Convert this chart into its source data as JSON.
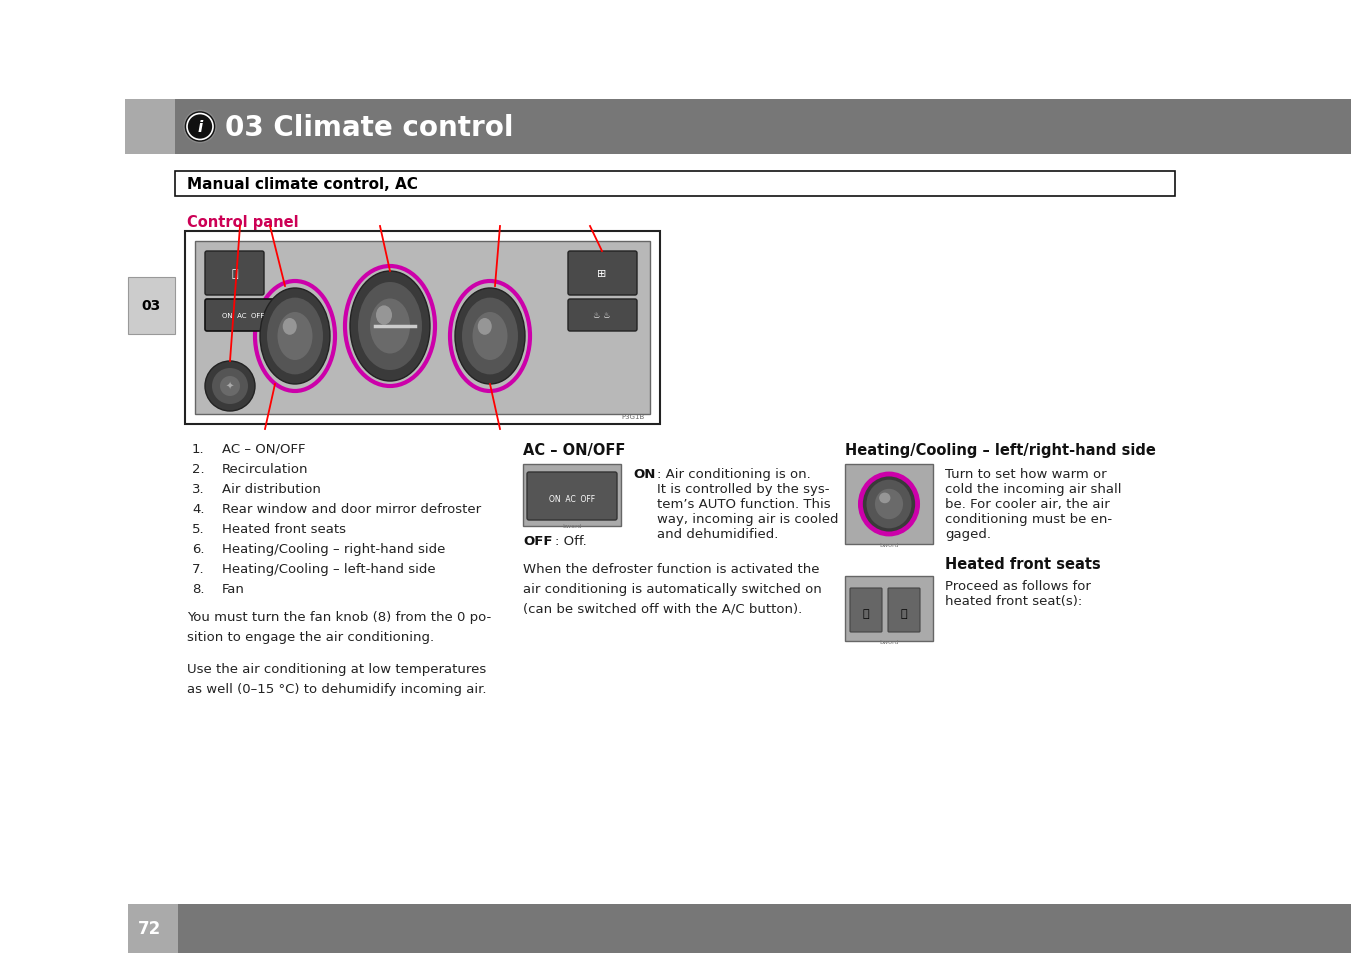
{
  "bg_color": "#ffffff",
  "header_bg": "#777777",
  "header_light_bg": "#aaaaaa",
  "header_text": "03 Climate control",
  "header_text_color": "#ffffff",
  "footer_bg": "#777777",
  "footer_light_bg": "#aaaaaa",
  "footer_text": "72",
  "footer_text_color": "#ffffff",
  "section_title": "Manual climate control, AC",
  "section_title_color": "#000000",
  "control_panel_label": "Control panel",
  "control_panel_color": "#cc0055",
  "list_items": [
    [
      "1.",
      "AC – ON/OFF"
    ],
    [
      "2.",
      "Recirculation"
    ],
    [
      "3.",
      "Air distribution"
    ],
    [
      "4.",
      "Rear window and door mirror defroster"
    ],
    [
      "5.",
      "Heated front seats"
    ],
    [
      "6.",
      "Heating/Cooling – right-hand side"
    ],
    [
      "7.",
      "Heating/Cooling – left-hand side"
    ],
    [
      "8.",
      "Fan"
    ]
  ],
  "para1_line1": "You must turn the fan knob (8) from the 0 po-",
  "para1_line2": "sition to engage the air conditioning.",
  "para2_line1": "Use the air conditioning at low temperatures",
  "para2_line2": "as well (0–15 °C) to dehumidify incoming air.",
  "col2_title": "AC – ON/OFF",
  "col2_on_text": ": Air conditioning is on.\nIt is controlled by the sys-\ntem’s AUTO function. This\nway, incoming air is cooled\nand dehumidified.",
  "col2_off_text": ": Off.",
  "col2_para_line1": "When the defroster function is activated the",
  "col2_para_line2": "air conditioning is automatically switched on",
  "col2_para_line3": "(can be switched off with the A/C button).",
  "col3_title": "Heating/Cooling – left/right-hand side",
  "col3_text": "Turn to set how warm or\ncold the incoming air shall\nbe. For cooler air, the air\nconditioning must be en-\ngaged.",
  "col3_title2": "Heated front seats",
  "col3_text2": "Proceed as follows for\nheated front seat(s):",
  "diagram_bg": "#c0c0c0",
  "diagram_border": "#333333",
  "side_tab_bg": "#cccccc",
  "side_tab_text": "03",
  "side_tab_text_color": "#000000"
}
